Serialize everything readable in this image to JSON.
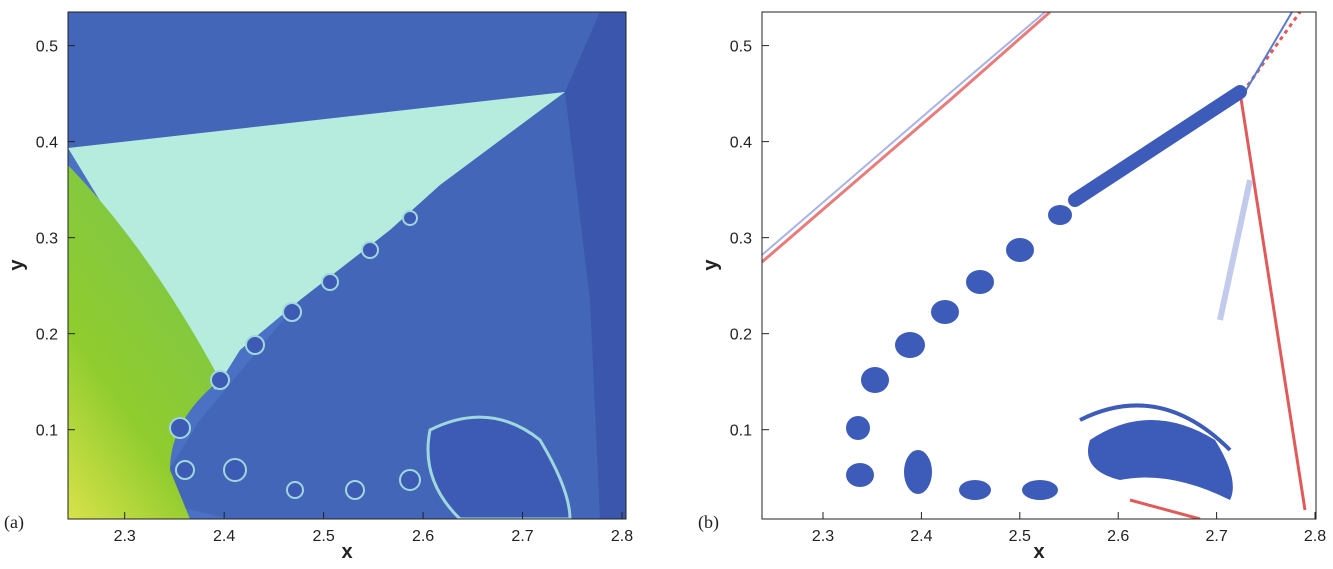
{
  "chart_data": [
    {
      "type": "image",
      "label": "(a)",
      "xlabel": "x",
      "ylabel": "y",
      "xlim": [
        2.243,
        2.804
      ],
      "ylim": [
        0.007,
        0.535
      ],
      "xticks": [
        2.3,
        2.4,
        2.5,
        2.6,
        2.7,
        2.8
      ],
      "yticks": [
        0.1,
        0.2,
        0.3,
        0.4,
        0.5
      ]
    },
    {
      "type": "image",
      "label": "(b)",
      "xlabel": "x",
      "ylabel": "y",
      "xlim": [
        2.238,
        2.801
      ],
      "ylim": [
        0.007,
        0.535
      ],
      "xticks": [
        2.3,
        2.4,
        2.5,
        2.6,
        2.7,
        2.8
      ],
      "yticks": [
        0.1,
        0.2,
        0.3,
        0.4,
        0.5
      ]
    }
  ]
}
